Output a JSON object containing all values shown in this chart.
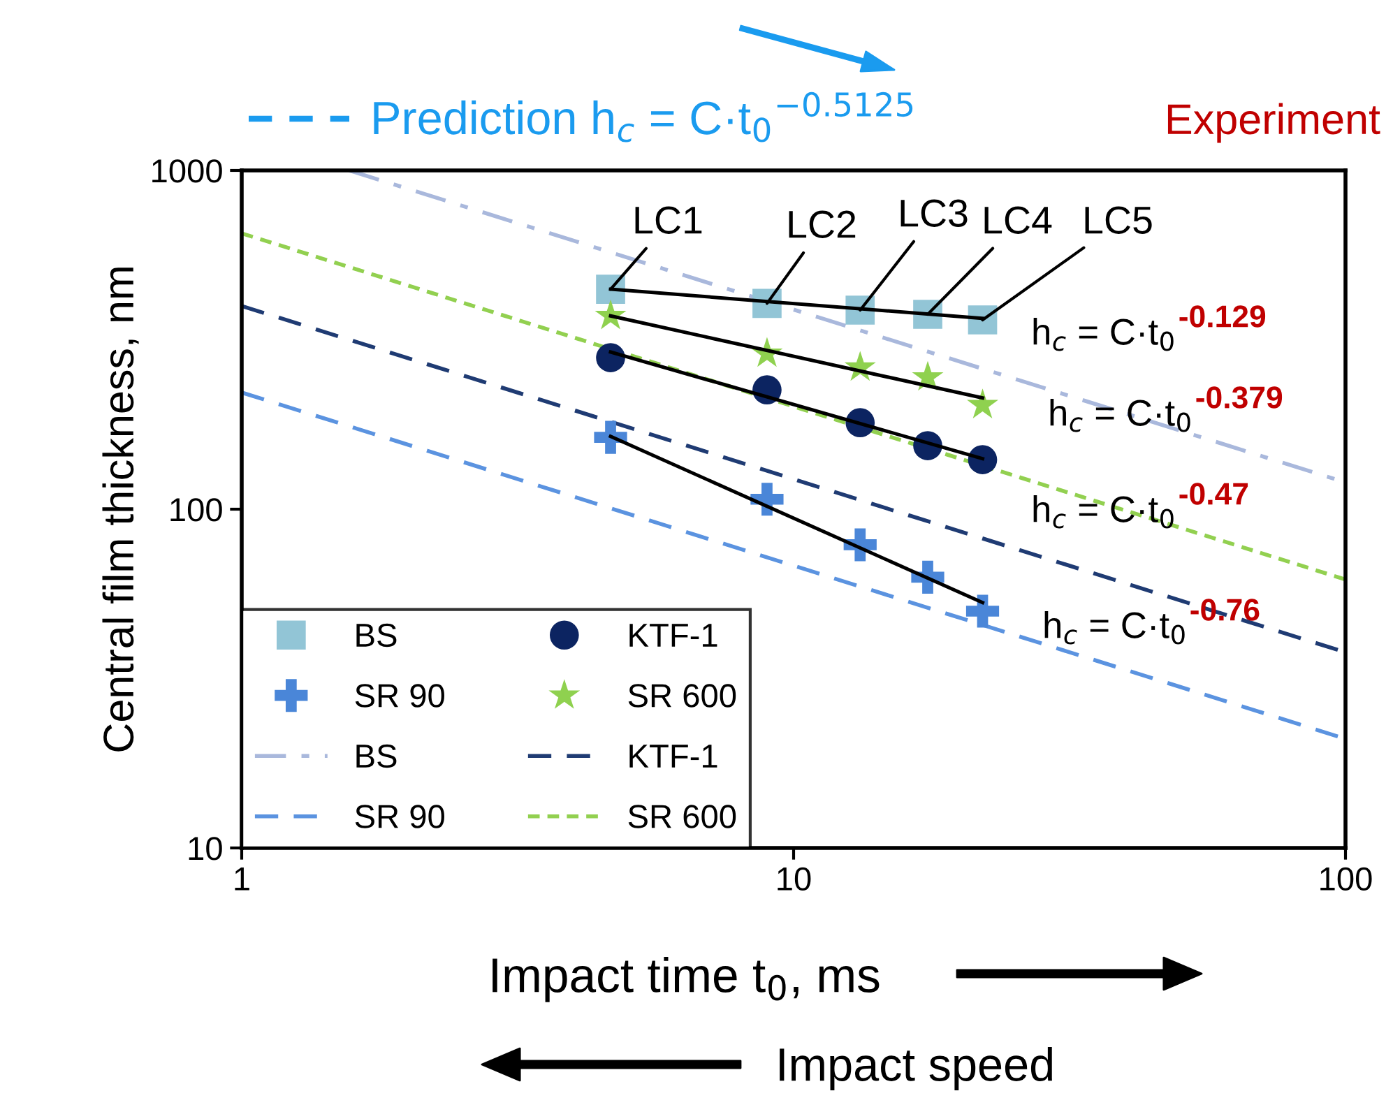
{
  "chart_data": {
    "type": "scatter",
    "xlabel": "Impact time t$_{0}$, ms",
    "ylabel": "Central film thickness, nm",
    "log": "xy",
    "xlim": [
      1,
      100
    ],
    "ylim": [
      10,
      1000
    ],
    "xticks": [
      1,
      10,
      100
    ],
    "yticks": [
      10,
      100,
      1000
    ],
    "grid": false,
    "legend": "bottom left",
    "x": [
      4.66,
      8.95,
      13.2,
      17.5,
      22.0
    ],
    "series": [
      {
        "name": "BS",
        "marker": "square",
        "color": "#92c5d6",
        "values": [
          446,
          405,
          387,
          376,
          362
        ]
      },
      {
        "name": "KTF-1",
        "marker": "circle",
        "color": "#0c2461",
        "values": [
          280,
          225,
          180,
          154,
          140
        ]
      },
      {
        "name": "SR 90",
        "marker": "cross",
        "color": "#4a86d8",
        "values": [
          163,
          107,
          78.5,
          63,
          50
        ]
      },
      {
        "name": "SR 600",
        "marker": "star",
        "color": "#8fd14f",
        "values": [
          372,
          288,
          262,
          245,
          203
        ]
      },
      {
        "name": "BS",
        "type": "line",
        "line_style": "dashdot",
        "color": "#a9b8dc",
        "x": [
          1.566,
          100
        ],
        "values": [
          1000,
          120
        ]
      },
      {
        "name": "KTF-1",
        "type": "line",
        "line_style": "dashed",
        "color": "#1f3b73",
        "x": [
          1,
          100
        ],
        "values": [
          398,
          37.8
        ]
      },
      {
        "name": "SR 90",
        "type": "line",
        "line_style": "dashed",
        "color": "#5b93e0",
        "x": [
          1,
          100
        ],
        "values": [
          221,
          21
        ]
      },
      {
        "name": "SR 600",
        "type": "line",
        "line_style": "dotted",
        "color": "#92d050",
        "x": [
          1,
          100
        ],
        "values": [
          652,
          62
        ]
      },
      {
        "type": "line",
        "line_style": "solid",
        "color": "#000000",
        "x": [
          4.66,
          22.0
        ],
        "values": [
          446,
          366
        ]
      },
      {
        "type": "line",
        "line_style": "solid",
        "color": "#000000",
        "x": [
          4.66,
          22.0
        ],
        "values": [
          372,
          213
        ]
      },
      {
        "type": "line",
        "line_style": "solid",
        "color": "#000000",
        "x": [
          4.66,
          22.0
        ],
        "values": [
          291,
          141
        ]
      },
      {
        "type": "line",
        "line_style": "solid",
        "color": "#000000",
        "x": [
          4.66,
          22.0
        ],
        "values": [
          164,
          53
        ]
      }
    ],
    "annotations": [
      "Prediction h$_{c}$ = C·t$_{0}$$^{−0.5125}$",
      "Experiment",
      "Impact speed",
      {
        "text": "LC1",
        "x": 4.66,
        "y": 446
      },
      {
        "text": "LC2",
        "x": 8.95,
        "y": 405
      },
      {
        "text": "LC3",
        "x": 13.2,
        "y": 387
      },
      {
        "text": "LC4",
        "x": 17.5,
        "y": 376
      },
      {
        "text": "LC5",
        "x": 22.0,
        "y": 362
      },
      "h$_{c}$ = C·t$_{0}$",
      "-0.129",
      "h$_{c}$ = C·t$_{0}$",
      "-0.379",
      "h$_{c}$ = C·t$_{0}$",
      "-0.47",
      "h$_{c}$ = C·t$_{0}$",
      "-0.76"
    ]
  }
}
